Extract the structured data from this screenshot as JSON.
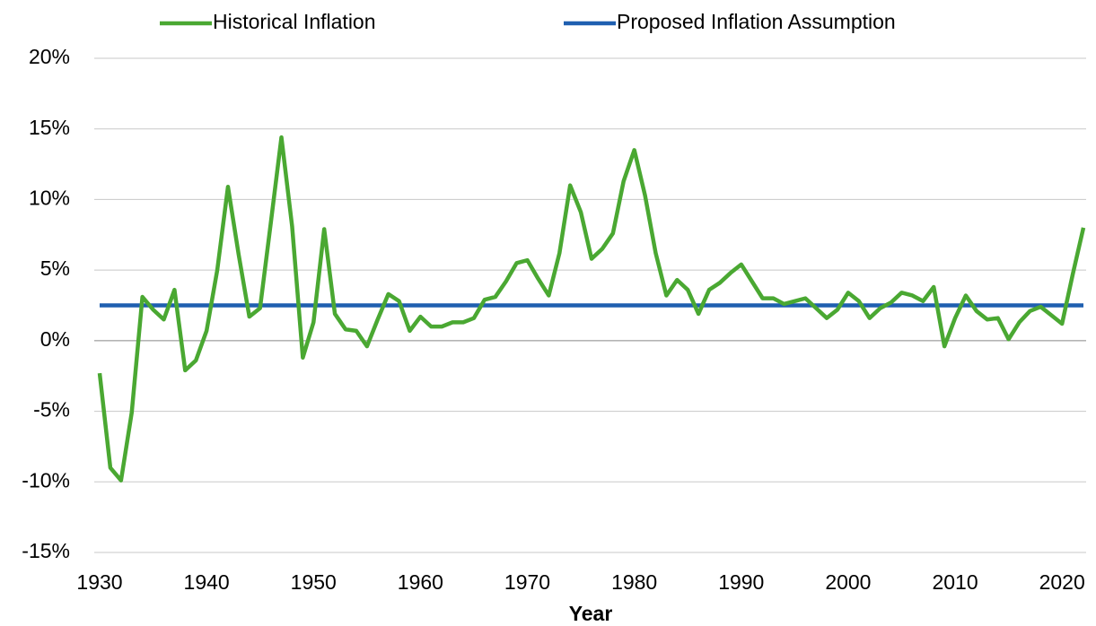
{
  "chart_data": {
    "type": "line",
    "xlabel": "Year",
    "x": [
      1930,
      1931,
      1932,
      1933,
      1934,
      1935,
      1936,
      1937,
      1938,
      1939,
      1940,
      1941,
      1942,
      1943,
      1944,
      1945,
      1946,
      1947,
      1948,
      1949,
      1950,
      1951,
      1952,
      1953,
      1954,
      1955,
      1956,
      1957,
      1958,
      1959,
      1960,
      1961,
      1962,
      1963,
      1964,
      1965,
      1966,
      1967,
      1968,
      1969,
      1970,
      1971,
      1972,
      1973,
      1974,
      1975,
      1976,
      1977,
      1978,
      1979,
      1980,
      1981,
      1982,
      1983,
      1984,
      1985,
      1986,
      1987,
      1988,
      1989,
      1990,
      1991,
      1992,
      1993,
      1994,
      1995,
      1996,
      1997,
      1998,
      1999,
      2000,
      2001,
      2002,
      2003,
      2004,
      2005,
      2006,
      2007,
      2008,
      2009,
      2010,
      2011,
      2012,
      2013,
      2014,
      2015,
      2016,
      2017,
      2018,
      2019,
      2020,
      2021,
      2022
    ],
    "series": [
      {
        "name": "Historical Inflation",
        "color": "#4aa832",
        "values": [
          -2.3,
          -9.0,
          -9.9,
          -5.1,
          3.1,
          2.2,
          1.5,
          3.6,
          -2.1,
          -1.4,
          0.7,
          5.0,
          10.9,
          6.1,
          1.7,
          2.3,
          8.3,
          14.4,
          8.1,
          -1.2,
          1.3,
          7.9,
          1.9,
          0.8,
          0.7,
          -0.4,
          1.5,
          3.3,
          2.8,
          0.7,
          1.7,
          1.0,
          1.0,
          1.3,
          1.3,
          1.6,
          2.9,
          3.1,
          4.2,
          5.5,
          5.7,
          4.4,
          3.2,
          6.2,
          11.0,
          9.1,
          5.8,
          6.5,
          7.6,
          11.3,
          13.5,
          10.3,
          6.2,
          3.2,
          4.3,
          3.6,
          1.9,
          3.6,
          4.1,
          4.8,
          5.4,
          4.2,
          3.0,
          3.0,
          2.6,
          2.8,
          3.0,
          2.3,
          1.6,
          2.2,
          3.4,
          2.8,
          1.6,
          2.3,
          2.7,
          3.4,
          3.2,
          2.8,
          3.8,
          -0.4,
          1.6,
          3.2,
          2.1,
          1.5,
          1.6,
          0.1,
          1.3,
          2.1,
          2.4,
          1.8,
          1.2,
          4.7,
          8.0
        ]
      },
      {
        "name": "Proposed Inflation Assumption",
        "color": "#1f5fb0",
        "values": [
          2.5,
          2.5,
          2.5,
          2.5,
          2.5,
          2.5,
          2.5,
          2.5,
          2.5,
          2.5,
          2.5,
          2.5,
          2.5,
          2.5,
          2.5,
          2.5,
          2.5,
          2.5,
          2.5,
          2.5,
          2.5,
          2.5,
          2.5,
          2.5,
          2.5,
          2.5,
          2.5,
          2.5,
          2.5,
          2.5,
          2.5,
          2.5,
          2.5,
          2.5,
          2.5,
          2.5,
          2.5,
          2.5,
          2.5,
          2.5,
          2.5,
          2.5,
          2.5,
          2.5,
          2.5,
          2.5,
          2.5,
          2.5,
          2.5,
          2.5,
          2.5,
          2.5,
          2.5,
          2.5,
          2.5,
          2.5,
          2.5,
          2.5,
          2.5,
          2.5,
          2.5,
          2.5,
          2.5,
          2.5,
          2.5,
          2.5,
          2.5,
          2.5,
          2.5,
          2.5,
          2.5,
          2.5,
          2.5,
          2.5,
          2.5,
          2.5,
          2.5,
          2.5,
          2.5,
          2.5,
          2.5,
          2.5,
          2.5,
          2.5,
          2.5,
          2.5,
          2.5,
          2.5,
          2.5,
          2.5,
          2.5,
          2.5,
          2.5
        ]
      }
    ],
    "xlim": [
      1930,
      2022
    ],
    "xticks": [
      1930,
      1940,
      1950,
      1960,
      1970,
      1980,
      1990,
      2000,
      2010,
      2020
    ],
    "ylim": [
      -15,
      20
    ],
    "yticks": [
      {
        "value": -15,
        "label": "-15%"
      },
      {
        "value": -10,
        "label": "-10%"
      },
      {
        "value": -5,
        "label": "-5%"
      },
      {
        "value": 0,
        "label": "0%"
      },
      {
        "value": 5,
        "label": "5%"
      },
      {
        "value": 10,
        "label": "10%"
      },
      {
        "value": 15,
        "label": "15%"
      },
      {
        "value": 20,
        "label": "20%"
      }
    ],
    "grid": true,
    "legend": "top"
  }
}
